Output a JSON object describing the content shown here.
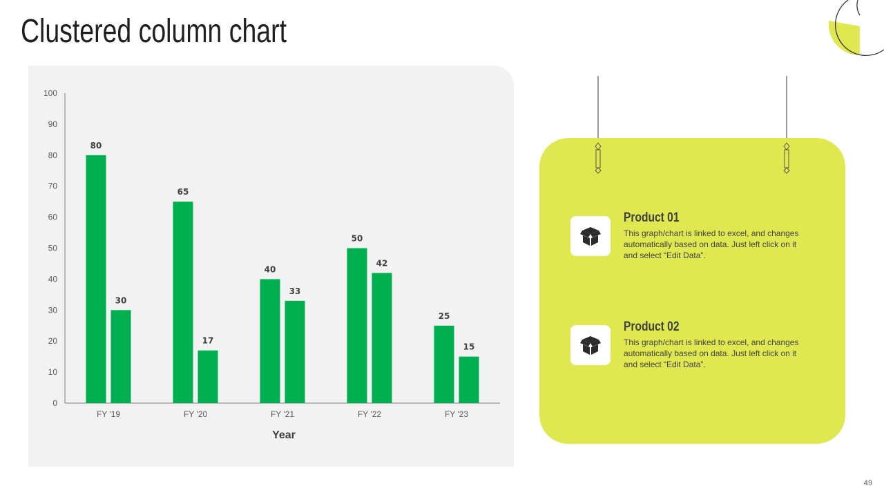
{
  "page": {
    "title": "Clustered column chart",
    "page_number": "49"
  },
  "colors": {
    "bar": "#00b050",
    "card": "#dfe94f",
    "panel": "#f2f2f2",
    "deco_accent": "#dfe94f"
  },
  "chart_data": {
    "type": "bar",
    "categories": [
      "FY '19",
      "FY '20",
      "FY '21",
      "FY '22",
      "FY '23"
    ],
    "series": [
      {
        "values": [
          80,
          65,
          40,
          50,
          25
        ]
      },
      {
        "values": [
          30,
          17,
          33,
          42,
          15
        ]
      }
    ],
    "xlabel": "Year",
    "ylabel": "",
    "ylim": [
      0,
      100
    ],
    "yticks": [
      0,
      10,
      20,
      30,
      40,
      50,
      60,
      70,
      80,
      90,
      100
    ],
    "grid": false,
    "data_labels": true,
    "legend": "none"
  },
  "products": [
    {
      "title": "Product 01",
      "description": "This graph/chart is linked to excel, and changes automatically based on data. Just left click on it and select “Edit Data”.",
      "icon": "box-icon"
    },
    {
      "title": "Product 02",
      "description": "This graph/chart is linked to excel, and changes automatically based on data. Just left click on it and select “Edit Data”.",
      "icon": "box-icon"
    }
  ]
}
